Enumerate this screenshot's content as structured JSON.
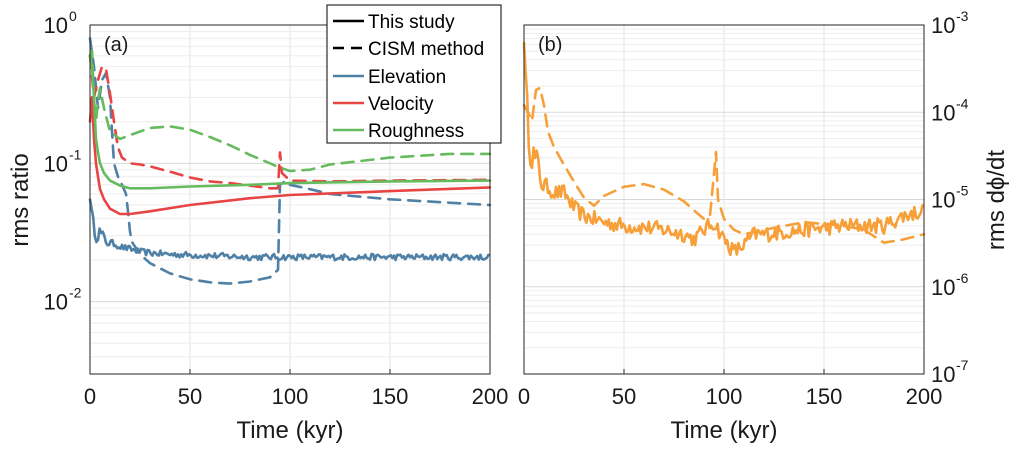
{
  "colors": {
    "elevation": "#4f81a7",
    "velocity": "#e84444",
    "roughness": "#66bb5e",
    "dphi": "#f7a03a",
    "grid": "#e3e3e3",
    "axis": "#262626"
  },
  "chart_data": [
    {
      "type": "line",
      "panel_label": "(a)",
      "xlabel": "Time (kyr)",
      "ylabel": "rms ratio",
      "xlim": [
        0,
        200
      ],
      "ylim": [
        0.003,
        1
      ],
      "yscale": "log",
      "grid": true,
      "xticks": [
        0,
        50,
        100,
        150,
        200
      ],
      "xtick_labels": [
        "0",
        "50",
        "100",
        "150",
        "200"
      ],
      "ytick_labels": [
        {
          "value": 1,
          "base": "10",
          "exp": "0"
        },
        {
          "value": 0.1,
          "base": "10",
          "exp": "-1"
        },
        {
          "value": 0.01,
          "base": "10",
          "exp": "-2"
        }
      ],
      "legend": {
        "placement": "top-center",
        "entries": [
          {
            "label": "This study",
            "style": "solid",
            "color": "#000000"
          },
          {
            "label": "CISM method",
            "style": "dashed",
            "color": "#000000"
          },
          {
            "label": "Elevation",
            "style": "solid",
            "color": "#4f81a7"
          },
          {
            "label": "Velocity",
            "style": "solid",
            "color": "#e84444"
          },
          {
            "label": "Roughness",
            "style": "solid",
            "color": "#66bb5e"
          }
        ]
      },
      "series": [
        {
          "name": "Elevation (This study)",
          "color": "#4f81a7",
          "style": "solid",
          "noise": 0.05,
          "x": [
            0,
            1,
            2,
            3,
            5,
            7,
            10,
            15,
            20,
            25,
            30,
            40,
            60,
            80,
            100,
            150,
            200
          ],
          "y": [
            0.06,
            0.04,
            0.035,
            0.03,
            0.032,
            0.028,
            0.027,
            0.025,
            0.024,
            0.023,
            0.0225,
            0.022,
            0.0215,
            0.021,
            0.021,
            0.021,
            0.021
          ]
        },
        {
          "name": "Elevation (CISM method)",
          "color": "#4f81a7",
          "style": "dashed",
          "noise": 0,
          "x": [
            0,
            2,
            4,
            6,
            8,
            10,
            11,
            12,
            14,
            16,
            18,
            19,
            20,
            21,
            25,
            30,
            40,
            50,
            60,
            70,
            80,
            90,
            94,
            95,
            98,
            100,
            110,
            120,
            150,
            200
          ],
          "y": [
            0.8,
            0.5,
            0.25,
            0.4,
            0.45,
            0.3,
            0.17,
            0.1,
            0.08,
            0.07,
            0.06,
            0.045,
            0.032,
            0.027,
            0.022,
            0.019,
            0.016,
            0.0145,
            0.0138,
            0.0135,
            0.014,
            0.015,
            0.017,
            0.07,
            0.075,
            0.07,
            0.065,
            0.06,
            0.055,
            0.05
          ]
        },
        {
          "name": "Velocity (This study)",
          "color": "#e84444",
          "style": "solid",
          "noise": 0,
          "x": [
            0,
            1,
            2,
            3,
            4,
            5,
            7,
            10,
            15,
            20,
            30,
            50,
            80,
            100,
            150,
            200
          ],
          "y": [
            0.2,
            0.3,
            0.15,
            0.1,
            0.08,
            0.065,
            0.055,
            0.047,
            0.043,
            0.043,
            0.045,
            0.05,
            0.056,
            0.059,
            0.063,
            0.067
          ]
        },
        {
          "name": "Velocity (CISM method)",
          "color": "#e84444",
          "style": "dashed",
          "noise": 0,
          "x": [
            0,
            2,
            4,
            6,
            8,
            10,
            12,
            14,
            16,
            18,
            20,
            25,
            30,
            40,
            50,
            60,
            70,
            80,
            90,
            94,
            95,
            96,
            100,
            120,
            150,
            200
          ],
          "y": [
            0.6,
            0.3,
            0.4,
            0.5,
            0.48,
            0.32,
            0.2,
            0.13,
            0.11,
            0.105,
            0.1,
            0.098,
            0.095,
            0.087,
            0.079,
            0.074,
            0.072,
            0.069,
            0.066,
            0.066,
            0.12,
            0.085,
            0.075,
            0.074,
            0.075,
            0.076
          ]
        },
        {
          "name": "Roughness (This study)",
          "color": "#66bb5e",
          "style": "solid",
          "noise": 0,
          "x": [
            0,
            1,
            2,
            3,
            4,
            5,
            7,
            10,
            15,
            20,
            30,
            50,
            80,
            100,
            150,
            200
          ],
          "y": [
            0.6,
            0.5,
            0.3,
            0.15,
            0.12,
            0.1,
            0.085,
            0.075,
            0.069,
            0.066,
            0.066,
            0.068,
            0.07,
            0.072,
            0.074,
            0.075
          ]
        },
        {
          "name": "Roughness (CISM method)",
          "color": "#66bb5e",
          "style": "dashed",
          "noise": 0,
          "x": [
            0,
            1,
            2,
            3,
            4,
            5,
            7,
            10,
            15,
            20,
            30,
            40,
            50,
            60,
            70,
            80,
            90,
            95,
            100,
            110,
            120,
            150,
            180,
            200
          ],
          "y": [
            0.6,
            0.65,
            0.3,
            0.2,
            0.28,
            0.35,
            0.25,
            0.17,
            0.15,
            0.16,
            0.18,
            0.185,
            0.175,
            0.155,
            0.135,
            0.115,
            0.1,
            0.093,
            0.088,
            0.09,
            0.098,
            0.11,
            0.117,
            0.117
          ]
        }
      ]
    },
    {
      "type": "line",
      "panel_label": "(b)",
      "xlabel": "Time (kyr)",
      "ylabel": "rms dϕ/dt",
      "ylabel_position": "right",
      "xlim": [
        0,
        200
      ],
      "ylim": [
        1e-07,
        0.001
      ],
      "yscale": "log",
      "grid": true,
      "xticks": [
        0,
        50,
        100,
        150,
        200
      ],
      "xtick_labels": [
        "0",
        "50",
        "100",
        "150",
        "200"
      ],
      "ytick_labels": [
        {
          "value": 0.001,
          "base": "10",
          "exp": "-3"
        },
        {
          "value": 0.0001,
          "base": "10",
          "exp": "-4"
        },
        {
          "value": 1e-05,
          "base": "10",
          "exp": "-5"
        },
        {
          "value": 1e-06,
          "base": "10",
          "exp": "-6"
        },
        {
          "value": 1e-07,
          "base": "10",
          "exp": "-7"
        }
      ],
      "series": [
        {
          "name": "dϕ/dt (This study)",
          "color": "#f7a03a",
          "style": "solid",
          "noise": 0.2,
          "x": [
            0,
            1,
            2,
            3,
            5,
            8,
            10,
            15,
            20,
            25,
            30,
            40,
            50,
            60,
            70,
            80,
            85,
            90,
            95,
            100,
            105,
            110,
            115,
            120,
            140,
            160,
            180,
            190,
            200
          ],
          "y": [
            0.0009,
            0.00015,
            8e-05,
            4e-05,
            3e-05,
            2e-05,
            1.5e-05,
            1.2e-05,
            1.2e-05,
            8e-06,
            6.5e-06,
            5.5e-06,
            5e-06,
            4.8e-06,
            4.5e-06,
            4e-06,
            3.5e-06,
            4.5e-06,
            5.5e-06,
            3.5e-06,
            2.5e-06,
            3e-06,
            4e-06,
            4e-06,
            4.5e-06,
            5e-06,
            5e-06,
            6.5e-06,
            7.5e-06
          ]
        },
        {
          "name": "dϕ/dt (CISM method)",
          "color": "#f7a03a",
          "style": "dashed",
          "noise": 0,
          "x": [
            0,
            2,
            4,
            6,
            8,
            10,
            12,
            15,
            20,
            25,
            30,
            35,
            40,
            50,
            60,
            70,
            80,
            85,
            90,
            93,
            95,
            96,
            97,
            100,
            105,
            110,
            120,
            140,
            160,
            170,
            180,
            190,
            200
          ],
          "y": [
            0.00012,
            0.0001,
            8e-05,
            0.00018,
            0.00019,
            0.00012,
            6e-05,
            4e-05,
            2.5e-05,
            1.6e-05,
            1.05e-05,
            8.5e-06,
            1.1e-05,
            1.4e-05,
            1.5e-05,
            1.3e-05,
            9.5e-06,
            7.5e-06,
            6e-06,
            6.5e-06,
            2e-05,
            3.5e-05,
            1e-05,
            6e-06,
            4.5e-06,
            4e-06,
            4.5e-06,
            5.5e-06,
            5e-06,
            4.5e-06,
            3.2e-06,
            3.5e-06,
            4e-06
          ]
        }
      ]
    }
  ]
}
